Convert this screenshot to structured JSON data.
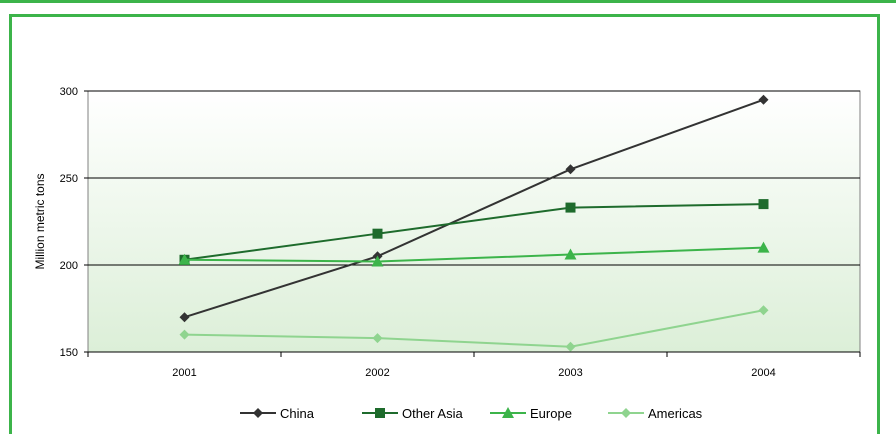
{
  "colors": {
    "frame": "#3cb44a",
    "China": "#333333",
    "Other Asia": "#1e6b2c",
    "Europe": "#3cb44a",
    "Americas": "#8fd48f"
  },
  "chart_data": {
    "type": "line",
    "title": "",
    "xlabel": "",
    "ylabel": "Million metric tons",
    "x": [
      "2001",
      "2002",
      "2003",
      "2004"
    ],
    "ylim": [
      150,
      300
    ],
    "yticks": [
      150,
      200,
      250,
      300
    ],
    "grid": true,
    "legend_position": "bottom",
    "series": [
      {
        "name": "China",
        "marker": "diamond",
        "values": [
          170,
          205,
          255,
          295
        ]
      },
      {
        "name": "Other Asia",
        "marker": "square",
        "values": [
          203,
          218,
          233,
          235
        ]
      },
      {
        "name": "Europe",
        "marker": "triangle",
        "values": [
          203,
          202,
          206,
          210
        ]
      },
      {
        "name": "Americas",
        "marker": "diamond",
        "values": [
          160,
          158,
          153,
          174
        ]
      }
    ]
  }
}
